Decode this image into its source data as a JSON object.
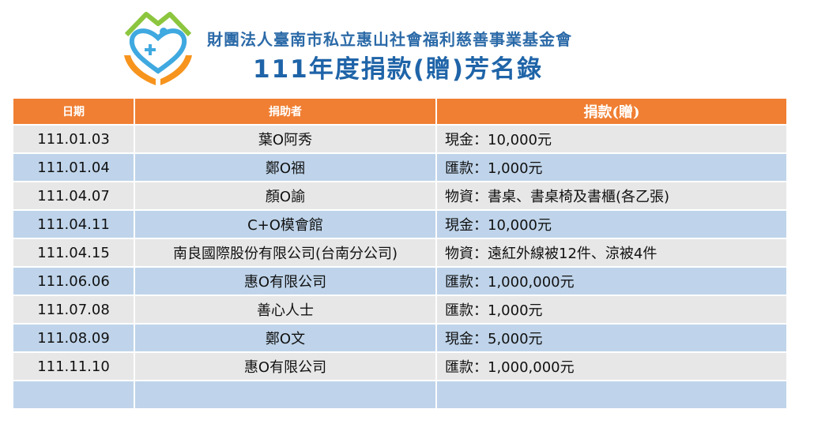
{
  "header": {
    "org_name": "財團法人臺南市私立惠山社會福利慈善事業基金會",
    "title": "111年度捐款(贈)芳名錄"
  },
  "table": {
    "columns": [
      "日期",
      "捐助者",
      "捐款(贈)"
    ],
    "rows": [
      {
        "date": "111.01.03",
        "donor": "葉O阿秀",
        "donation": "現金：10,000元"
      },
      {
        "date": "111.01.04",
        "donor": "鄭O祵",
        "donation": "匯款：1,000元"
      },
      {
        "date": "111.04.07",
        "donor": "顏O諭",
        "donation": "物資：書桌、書桌椅及書櫃(各乙張)"
      },
      {
        "date": "111.04.11",
        "donor": "C+O模會館",
        "donation": "現金：10,000元"
      },
      {
        "date": "111.04.15",
        "donor": "南良國際股份有限公司(台南分公司)",
        "donation": "物資：遠紅外線被12件、涼被4件"
      },
      {
        "date": "111.06.06",
        "donor": "惠O有限公司",
        "donation": "匯款：1,000,000元"
      },
      {
        "date": "111.07.08",
        "donor": "善心人士",
        "donation": "匯款：1,000元"
      },
      {
        "date": "111.08.09",
        "donor": "鄭O文",
        "donation": "現金：5,000元"
      },
      {
        "date": "111.11.10",
        "donor": "惠O有限公司",
        "donation": "匯款：1,000,000元"
      },
      {
        "date": "",
        "donor": "",
        "donation": ""
      }
    ]
  },
  "colors": {
    "header_orange": "#f07f33",
    "row_gray": "#e7e7e7",
    "row_blue": "#bfd4ea",
    "title_blue": "#1f64a8"
  }
}
